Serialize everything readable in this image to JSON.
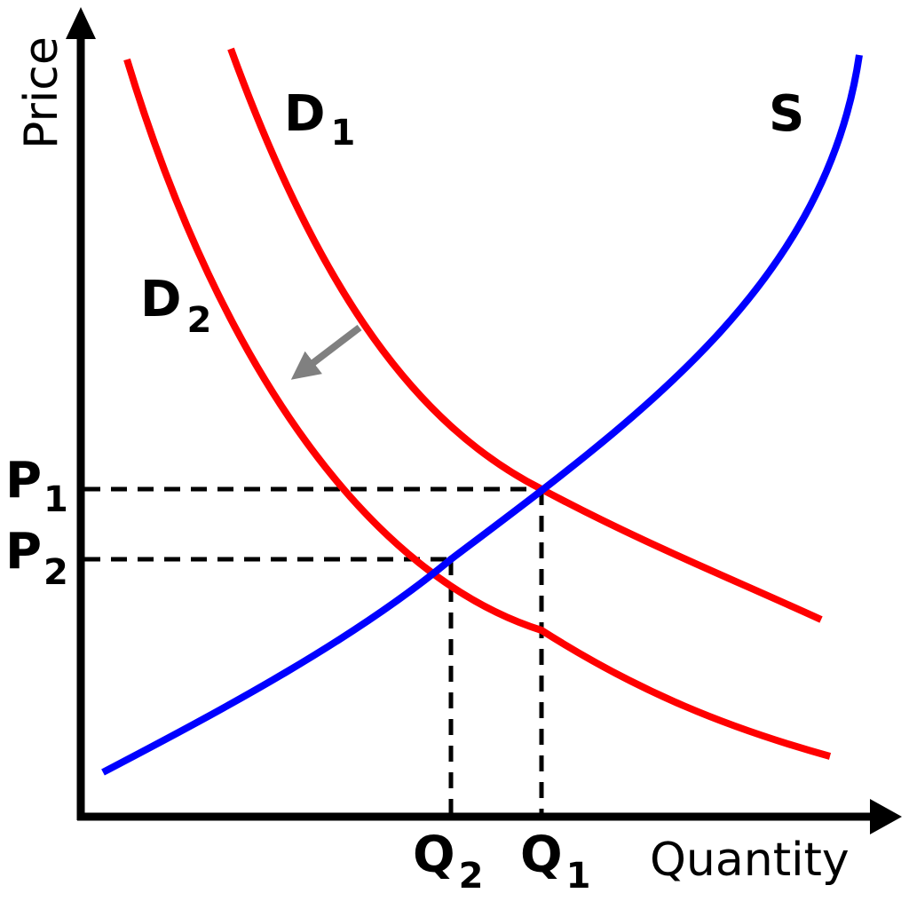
{
  "axes": {
    "y_title": "Price",
    "x_title": "Quantity"
  },
  "curves": {
    "supply": {
      "label": "S",
      "color": "#0000ff"
    },
    "demand_1": {
      "label": "D",
      "subscript": "1",
      "color": "#ff0000"
    },
    "demand_2": {
      "label": "D",
      "subscript": "2",
      "color": "#ff0000"
    }
  },
  "shift_arrow": {
    "color": "#808080"
  },
  "guides": {
    "p1": {
      "label": "P",
      "subscript": "1"
    },
    "p2": {
      "label": "P",
      "subscript": "2"
    },
    "q1": {
      "label": "Q",
      "subscript": "1"
    },
    "q2": {
      "label": "Q",
      "subscript": "2"
    }
  },
  "colors": {
    "axis": "#000000",
    "guide": "#000000"
  }
}
